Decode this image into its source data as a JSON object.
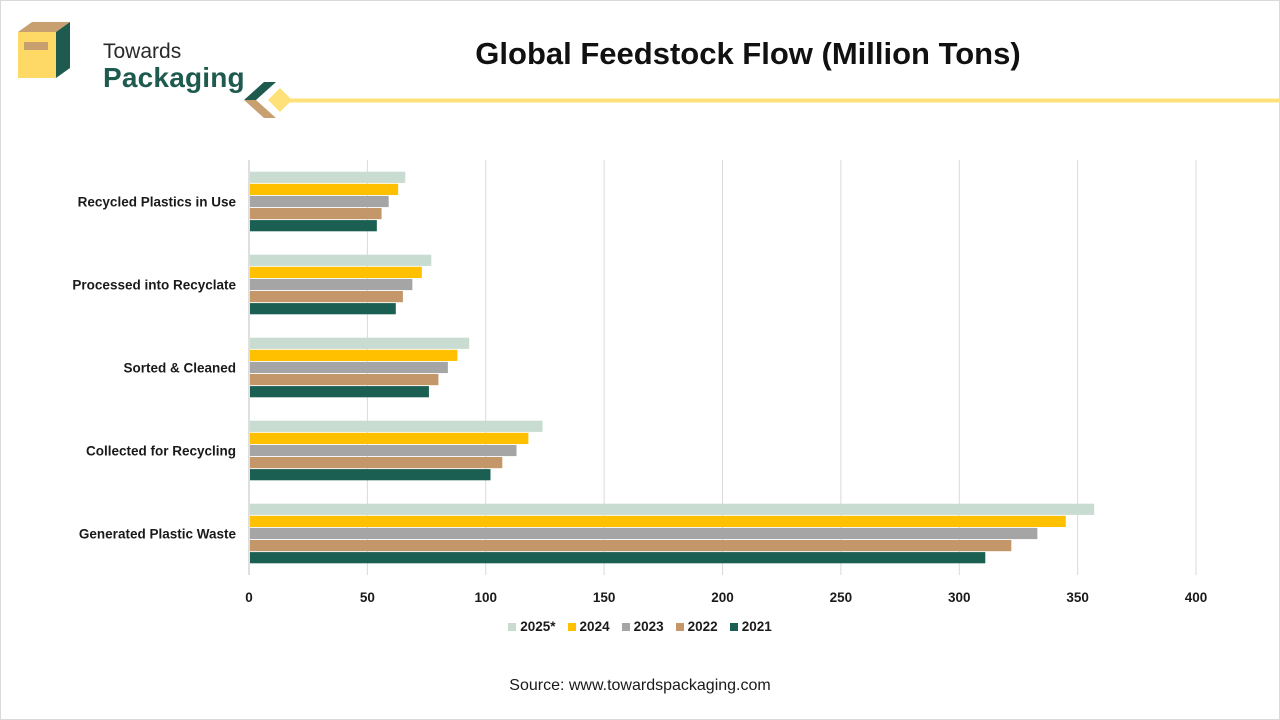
{
  "brand": {
    "line1": "Towards",
    "line2": "Packaging"
  },
  "source": "Source: www.towardspackaging.com",
  "colors": {
    "teal": "#1e5a4e",
    "tan": "#c8a070",
    "yellow": "#ffe17a",
    "gold": "#f5c518"
  },
  "chart_data": {
    "type": "bar",
    "orientation": "horizontal",
    "title": "Global Feedstock Flow (Million Tons)",
    "xlabel": "",
    "ylabel": "",
    "xlim": [
      0,
      400
    ],
    "xticks": [
      "0",
      "50",
      "100",
      "150",
      "200",
      "250",
      "300",
      "350",
      "400"
    ],
    "grid": true,
    "legend_position": "bottom",
    "categories": [
      "Recycled Plastics in Use",
      "Processed into Recyclate",
      "Sorted & Cleaned",
      "Collected for Recycling",
      "Generated Plastic Waste"
    ],
    "series": [
      {
        "name": "2025*",
        "color": "#c9dcd1",
        "values": [
          66,
          77,
          93,
          124,
          357
        ]
      },
      {
        "name": "2024",
        "color": "#ffc000",
        "values": [
          63,
          73,
          88,
          118,
          345
        ]
      },
      {
        "name": "2023",
        "color": "#a5a5a5",
        "values": [
          59,
          69,
          84,
          113,
          333
        ]
      },
      {
        "name": "2022",
        "color": "#c4976a",
        "values": [
          56,
          65,
          80,
          107,
          322
        ]
      },
      {
        "name": "2021",
        "color": "#1b5e52",
        "values": [
          54,
          62,
          76,
          102,
          311
        ]
      }
    ]
  }
}
